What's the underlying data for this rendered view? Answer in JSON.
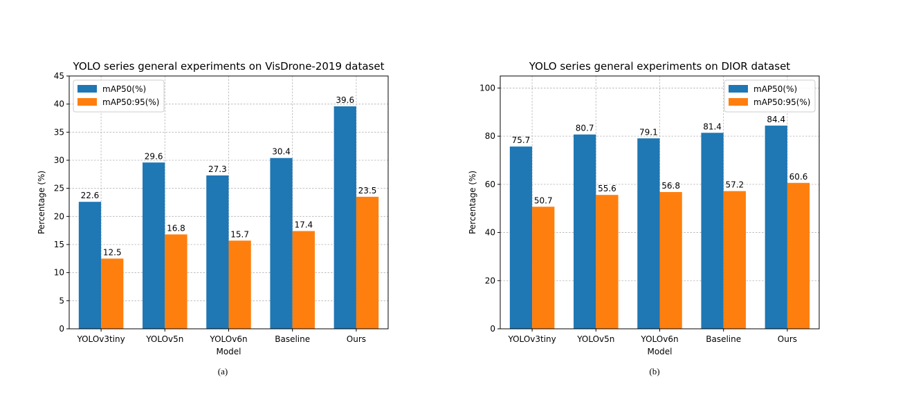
{
  "colors": {
    "mAP50": "#1f77b4",
    "mAP5095": "#ff7f0e"
  },
  "captions": [
    "(a)",
    "(b)"
  ],
  "chart_data": [
    {
      "type": "bar",
      "title": "YOLO series general experiments on VisDrone-2019 dataset",
      "xlabel": "Model",
      "ylabel": "Percentage (%)",
      "categories": [
        "YOLOv3tiny",
        "YOLOv5n",
        "YOLOv6n",
        "Baseline",
        "Ours"
      ],
      "series": [
        {
          "name": "mAP50(%)",
          "values": [
            22.6,
            29.6,
            27.3,
            30.4,
            39.6
          ]
        },
        {
          "name": "mAP50:95(%)",
          "values": [
            12.5,
            16.8,
            15.7,
            17.4,
            23.5
          ]
        }
      ],
      "ylim": [
        0,
        45
      ],
      "yticks": [
        0,
        5,
        10,
        15,
        20,
        25,
        30,
        35,
        40,
        45
      ],
      "grid": true,
      "legend": "top-left"
    },
    {
      "type": "bar",
      "title": "YOLO series general experiments on DIOR dataset",
      "xlabel": "Model",
      "ylabel": "Percentage (%)",
      "categories": [
        "YOLOv3tiny",
        "YOLOv5n",
        "YOLOv6n",
        "Baseline",
        "Ours"
      ],
      "series": [
        {
          "name": "mAP50(%)",
          "values": [
            75.7,
            80.7,
            79.1,
            81.4,
            84.4
          ]
        },
        {
          "name": "mAP50:95(%)",
          "values": [
            50.7,
            55.6,
            56.8,
            57.2,
            60.6
          ]
        }
      ],
      "ylim": [
        0,
        105
      ],
      "yticks": [
        0,
        20,
        40,
        60,
        80,
        100
      ],
      "grid": true,
      "legend": "top-right"
    }
  ]
}
